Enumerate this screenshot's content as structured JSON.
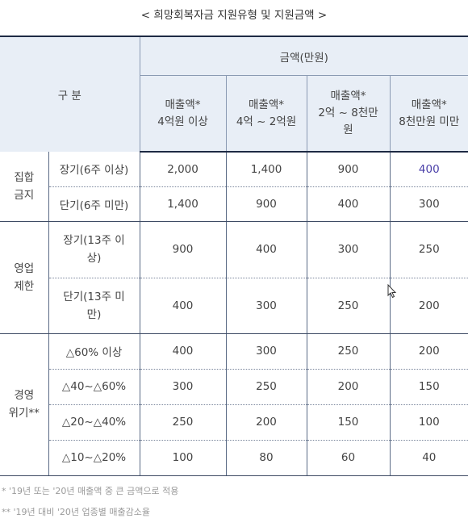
{
  "title": "< 희망회복자금 지원유형 및 지원금액 >",
  "header": {
    "gubun": "구 분",
    "amount_header": "금액(만원)",
    "columns": [
      {
        "line1": "매출액*",
        "line2": "4억원 이상"
      },
      {
        "line1": "매출액*",
        "line2": "4억 ~ 2억원"
      },
      {
        "line1": "매출액*",
        "line2": "2억 ~ 8천만",
        "line3": "원"
      },
      {
        "line1": "매출액*",
        "line2": "8천만원 미만"
      }
    ]
  },
  "groups": [
    {
      "label_line1": "집합",
      "label_line2": "금지",
      "rows": [
        {
          "label_line1": "장기(6주 이상)",
          "values": [
            "2,000",
            "1,400",
            "900",
            "400"
          ]
        },
        {
          "label_line1": "단기(6주 미만)",
          "values": [
            "1,400",
            "900",
            "400",
            "300"
          ]
        }
      ]
    },
    {
      "label_line1": "영업",
      "label_line2": "제한",
      "rows": [
        {
          "label_line1": "장기(13주 이",
          "label_line2": "상)",
          "values": [
            "900",
            "400",
            "300",
            "250"
          ]
        },
        {
          "label_line1": "단기(13주 미",
          "label_line2": "만)",
          "values": [
            "400",
            "300",
            "250",
            "200"
          ]
        }
      ]
    },
    {
      "label_line1": "경영",
      "label_line2": "위기**",
      "rows": [
        {
          "label_line1": "△60% 이상",
          "values": [
            "400",
            "300",
            "250",
            "200"
          ]
        },
        {
          "label_line1": "△40~△60%",
          "values": [
            "300",
            "250",
            "200",
            "150"
          ]
        },
        {
          "label_line1": "△20~△40%",
          "values": [
            "250",
            "200",
            "150",
            "100"
          ]
        },
        {
          "label_line1": "△10~△20%",
          "values": [
            "100",
            "80",
            "60",
            "40"
          ]
        }
      ]
    }
  ],
  "footnotes": [
    "* '19년 또는 '20년 매출액 중 큰 금액으로 적용",
    "** '19년 대비 '20년 업종별 매출감소율"
  ],
  "colors": {
    "header_bg": "#e8eef6",
    "highlight_value": "#4a3fa8"
  }
}
